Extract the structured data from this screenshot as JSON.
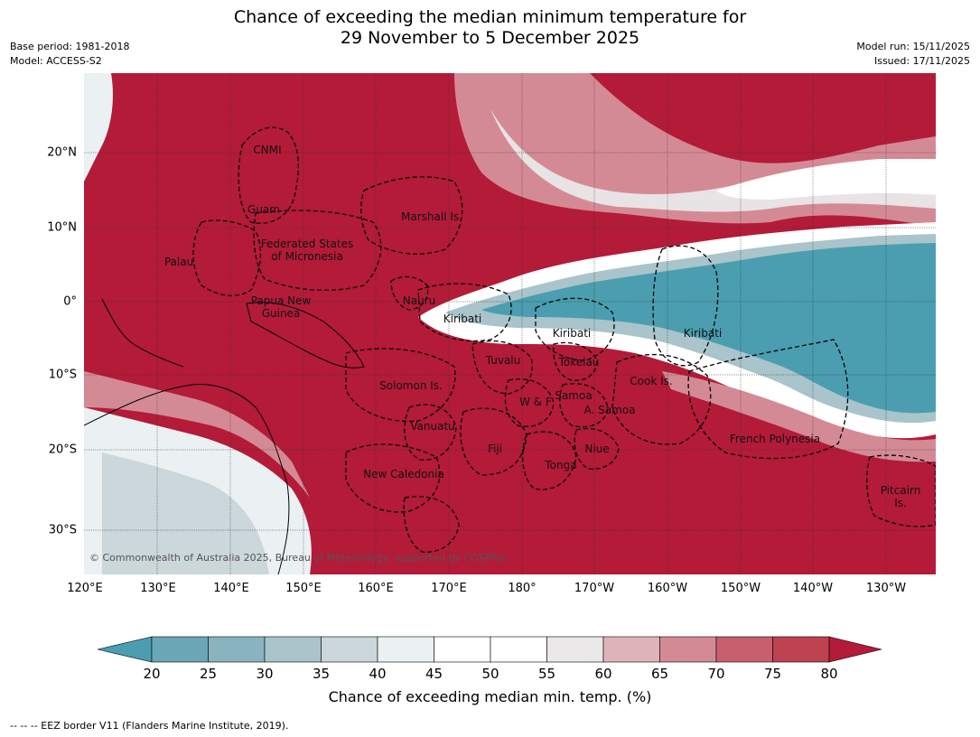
{
  "title": {
    "line1": "Chance of exceeding the median minimum temperature for",
    "line2": "29 November to 5 December 2025"
  },
  "meta": {
    "base_period": "Base period: 1981-2018",
    "model": "Model: ACCESS-S2",
    "model_run": "Model run: 15/11/2025",
    "issued": "Issued: 17/11/2025"
  },
  "map": {
    "copyright": "© Commonwealth of Australia 2025, Bureau of Meteorology, supported by COSPPac",
    "lat_labels": [
      "20°N",
      "10°N",
      "0°",
      "10°S",
      "20°S",
      "30°S"
    ],
    "lon_labels": [
      "120°E",
      "130°E",
      "140°E",
      "150°E",
      "160°E",
      "170°E",
      "180°",
      "170°W",
      "160°W",
      "150°W",
      "140°W",
      "130°W"
    ],
    "regions": {
      "cnmi": "CNMI",
      "guam": "Guam",
      "marshall": "Marshall Is.",
      "fsm1": "Federated States",
      "fsm2": "of Micronesia",
      "palau": "Palau",
      "png1": "Papua New",
      "png2": "Guinea",
      "nauru": "Nauru",
      "kiribati_w": "Kiribati",
      "kiribati_c": "Kiribati",
      "kiribati_e": "Kiribati",
      "tuvalu": "Tuvalu",
      "tokelau": "Tokelau",
      "solomon": "Solomon Is.",
      "wf": "W & F",
      "samoa": "Samoa",
      "asamoa": "A. Samoa",
      "cook": "Cook Is.",
      "vanuatu": "Vanuatu",
      "fiji": "Fiji",
      "niue": "Niue",
      "tonga": "Tonga",
      "french_poly": "French Polynesia",
      "new_caledonia": "New Caledonia",
      "pitcairn1": "Pitcairn",
      "pitcairn2": "Is."
    }
  },
  "colorbar": {
    "label": "Chance of exceeding median min. temp. (%)",
    "ticks": [
      "20",
      "25",
      "30",
      "35",
      "40",
      "45",
      "50",
      "55",
      "60",
      "65",
      "70",
      "75",
      "80"
    ],
    "colors": [
      "#4a9eb0",
      "#6aa6b5",
      "#89b4bf",
      "#a9c4ca",
      "#cbd7da",
      "#ebf1f2",
      "#ffffff",
      "#ffffff",
      "#ebe8ea",
      "#dfb3ba",
      "#d48a95",
      "#c85f6d",
      "#bd414f",
      "#b31b38"
    ]
  },
  "footnote": "--  --  -- EEZ border V11 (Flanders Marine Institute, 2019)."
}
